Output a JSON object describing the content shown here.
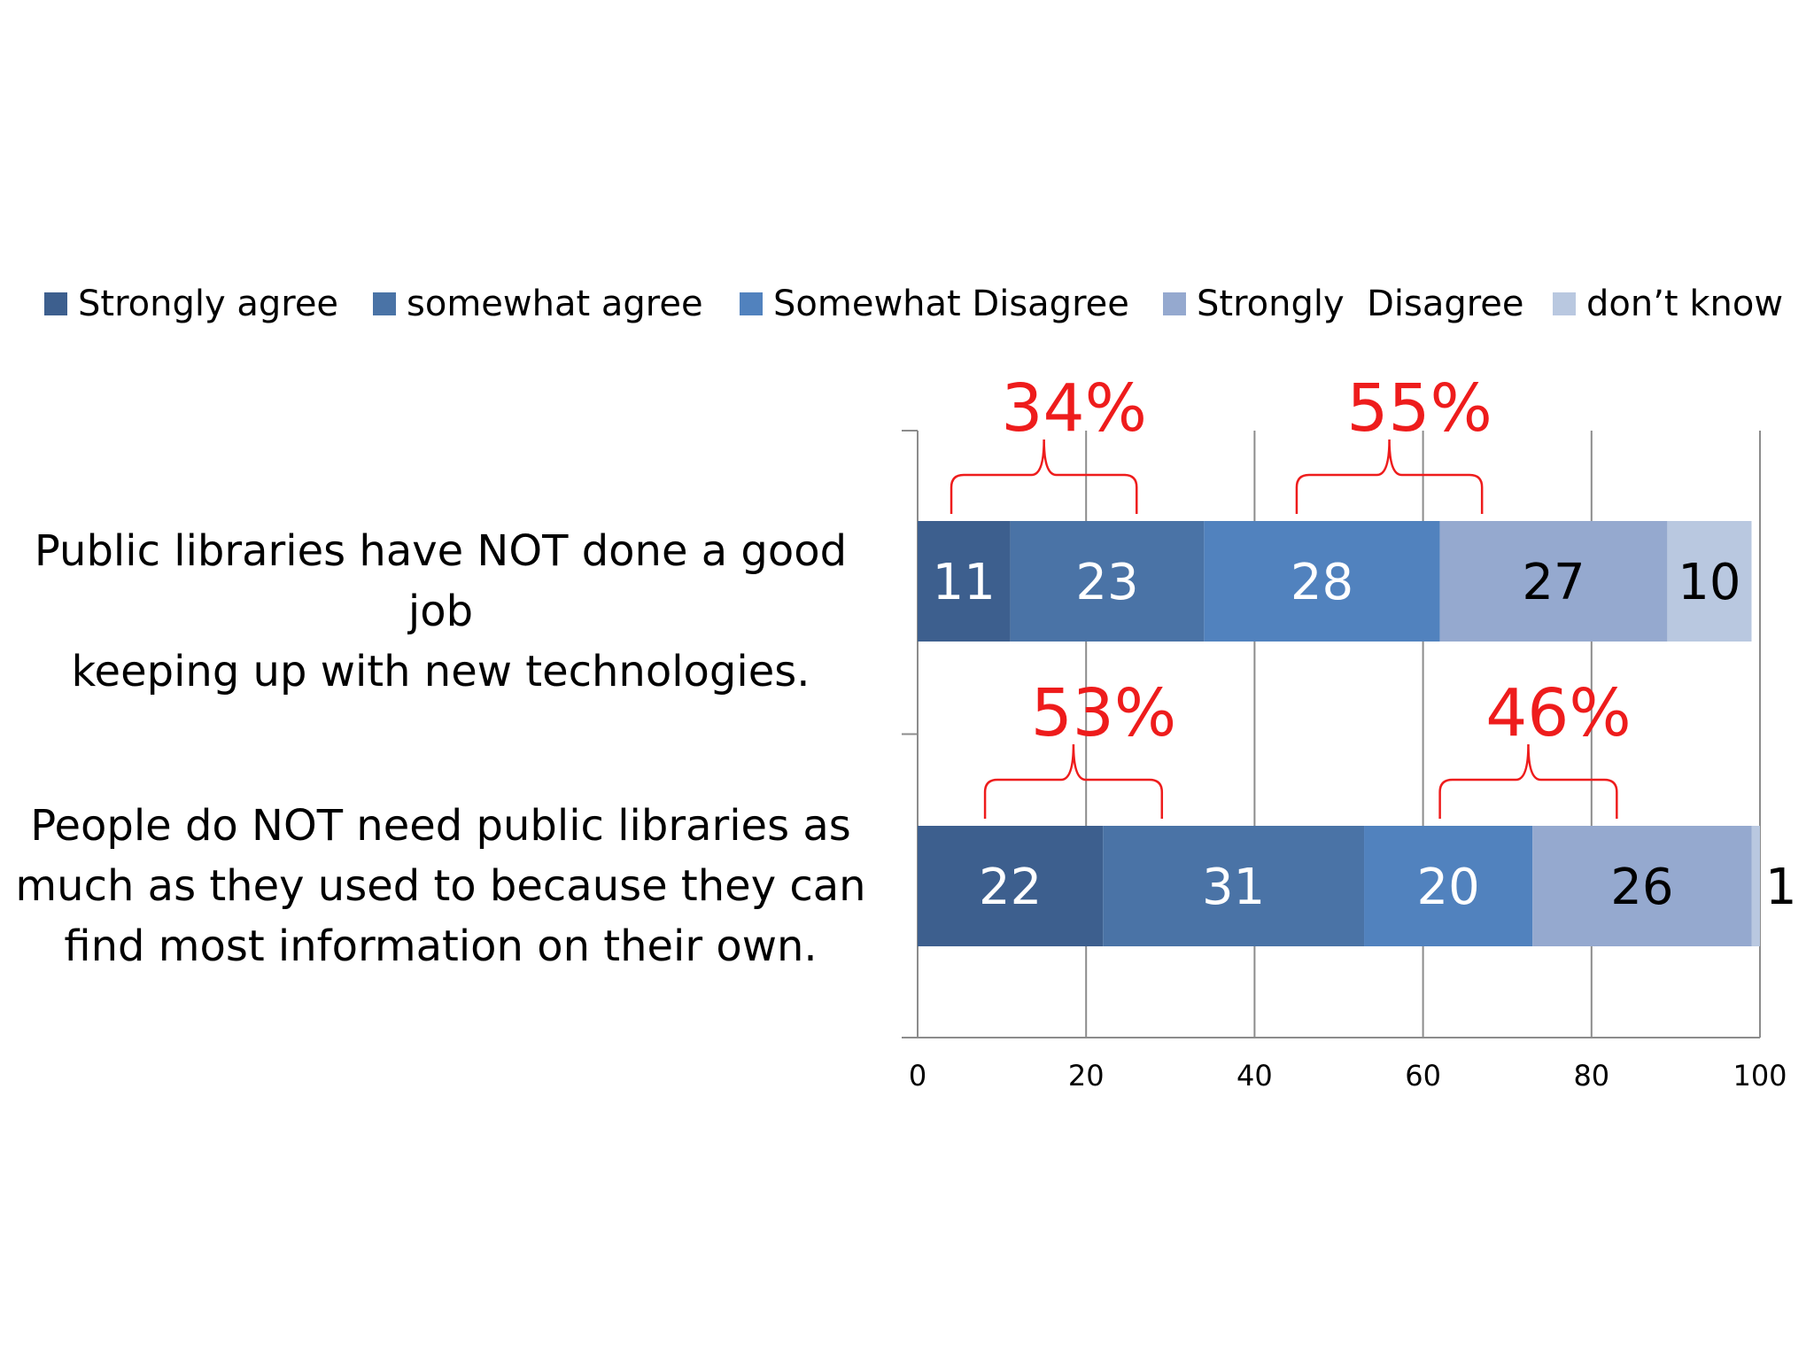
{
  "chart_data": {
    "type": "bar",
    "orientation": "horizontal",
    "stacked": true,
    "categories": [
      "Public libraries have NOT done a good job keeping up with new technologies.",
      "People do NOT need public libraries as much as they used to because they can find most information on their own."
    ],
    "category_lines": [
      [
        "Public libraries have NOT done a good job",
        "keeping up with new technologies."
      ],
      [
        "People do NOT need public libraries as",
        "much as they used to because they can",
        "find most information on their own."
      ]
    ],
    "series": [
      {
        "name": "Strongly agree",
        "color": "#3d5f8e",
        "values": [
          11,
          22
        ]
      },
      {
        "name": "somewhat agree",
        "color": "#4a73a6",
        "values": [
          23,
          31
        ]
      },
      {
        "name": "Somewhat Disagree",
        "color": "#5182be",
        "values": [
          28,
          20
        ]
      },
      {
        "name": "Strongly  Disagree",
        "color": "#95a9cf",
        "values": [
          27,
          26
        ]
      },
      {
        "name": "don’t know",
        "color": "#b9c8e0",
        "values": [
          10,
          1
        ]
      }
    ],
    "xlim": [
      0,
      100
    ],
    "xticks": [
      0,
      20,
      40,
      60,
      80,
      100
    ],
    "grid": true,
    "legend_position": "top",
    "annotations": [
      {
        "category_index": 0,
        "text": "34%",
        "from": 4,
        "to": 26
      },
      {
        "category_index": 0,
        "text": "55%",
        "from": 45,
        "to": 67
      },
      {
        "category_index": 1,
        "text": "53%",
        "from": 8,
        "to": 29
      },
      {
        "category_index": 1,
        "text": "46%",
        "from": 62,
        "to": 83
      }
    ],
    "annotation_color": "#ee1c1c"
  }
}
